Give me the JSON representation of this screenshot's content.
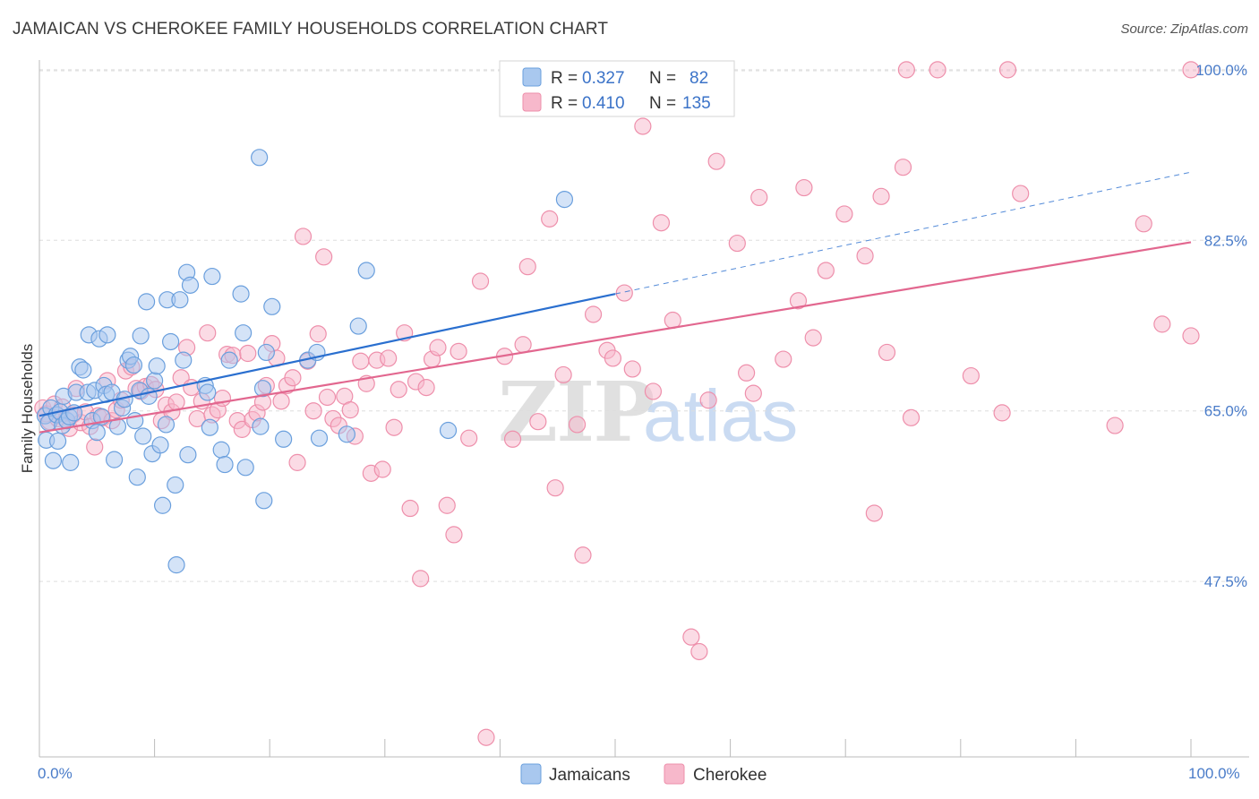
{
  "header": {
    "title": "JAMAICAN VS CHEROKEE FAMILY HOUSEHOLDS CORRELATION CHART",
    "source": "Source: ZipAtlas.com"
  },
  "watermark": {
    "zip": "ZIP",
    "atlas": "atlas"
  },
  "legend": {
    "jamaicans": {
      "r_label": "R =",
      "r_value": "0.327",
      "n_label": "N =",
      "n_value": "82"
    },
    "cherokee": {
      "r_label": "R =",
      "r_value": "0.410",
      "n_label": "N =",
      "n_value": "135"
    }
  },
  "colors": {
    "jamaicans_fill": "#a9c8ef",
    "jamaicans_stroke": "#6a9fdd",
    "jamaicans_line": "#2a6fcf",
    "cherokee_fill": "#f7b8cb",
    "cherokee_stroke": "#ee8fab",
    "cherokee_line": "#e2678f",
    "tick_text": "#4a7cc9",
    "grid": "#dddddd"
  },
  "chart_data": {
    "type": "scatter",
    "title": "JAMAICAN VS CHEROKEE FAMILY HOUSEHOLDS CORRELATION CHART",
    "xlabel": "",
    "ylabel": "Family Households",
    "xlim": [
      0,
      100
    ],
    "ylim": [
      29.5,
      101
    ],
    "y_ticks": [
      47.5,
      65.0,
      82.5,
      100.0
    ],
    "y_tick_labels": [
      "47.5%",
      "65.0%",
      "82.5%",
      "100.0%"
    ],
    "x_tick_labels": [
      "0.0%",
      "100.0%"
    ],
    "grid": true,
    "legend_position": "top-center",
    "series": [
      {
        "name": "Jamaicans",
        "r": 0.327,
        "n": 82,
        "trend": {
          "x0": 0,
          "y0": 64.5,
          "x1": 50,
          "y1": 77.0,
          "dashed_to_x": 100,
          "dashed_to_y": 89.5
        },
        "points": [
          [
            0.5,
            64.5
          ],
          [
            0.6,
            62.0
          ],
          [
            0.8,
            63.8
          ],
          [
            1.0,
            65.3
          ],
          [
            1.2,
            59.9
          ],
          [
            1.5,
            64.6
          ],
          [
            1.6,
            61.9
          ],
          [
            1.8,
            64.9
          ],
          [
            2.0,
            63.5
          ],
          [
            2.1,
            66.5
          ],
          [
            2.4,
            64.0
          ],
          [
            2.6,
            64.4
          ],
          [
            2.7,
            59.7
          ],
          [
            3.0,
            64.8
          ],
          [
            3.2,
            66.9
          ],
          [
            3.5,
            69.5
          ],
          [
            3.8,
            69.2
          ],
          [
            4.2,
            66.9
          ],
          [
            4.3,
            72.8
          ],
          [
            4.6,
            64.0
          ],
          [
            4.8,
            67.1
          ],
          [
            5.0,
            62.8
          ],
          [
            5.2,
            72.4
          ],
          [
            5.4,
            64.4
          ],
          [
            5.6,
            67.6
          ],
          [
            5.8,
            66.7
          ],
          [
            5.9,
            72.8
          ],
          [
            6.3,
            66.9
          ],
          [
            6.5,
            60.0
          ],
          [
            6.8,
            63.4
          ],
          [
            7.2,
            65.3
          ],
          [
            7.4,
            66.2
          ],
          [
            7.7,
            70.2
          ],
          [
            7.9,
            70.6
          ],
          [
            8.2,
            69.7
          ],
          [
            8.3,
            64.0
          ],
          [
            8.5,
            58.2
          ],
          [
            8.7,
            67.1
          ],
          [
            8.8,
            72.7
          ],
          [
            9.0,
            62.4
          ],
          [
            9.3,
            76.2
          ],
          [
            9.5,
            66.5
          ],
          [
            9.8,
            60.6
          ],
          [
            10.0,
            68.1
          ],
          [
            10.2,
            69.6
          ],
          [
            10.5,
            61.5
          ],
          [
            10.7,
            55.3
          ],
          [
            11.0,
            63.6
          ],
          [
            11.1,
            76.4
          ],
          [
            11.4,
            72.1
          ],
          [
            11.8,
            57.4
          ],
          [
            11.9,
            49.2
          ],
          [
            12.2,
            76.4
          ],
          [
            12.5,
            70.2
          ],
          [
            12.8,
            79.2
          ],
          [
            12.9,
            60.5
          ],
          [
            13.1,
            77.9
          ],
          [
            14.4,
            67.6
          ],
          [
            14.6,
            66.9
          ],
          [
            14.8,
            63.3
          ],
          [
            15.0,
            78.8
          ],
          [
            15.8,
            61.0
          ],
          [
            16.1,
            59.5
          ],
          [
            16.5,
            70.2
          ],
          [
            17.5,
            77.0
          ],
          [
            17.7,
            73.0
          ],
          [
            17.9,
            59.2
          ],
          [
            19.1,
            91.0
          ],
          [
            19.2,
            63.4
          ],
          [
            19.4,
            67.3
          ],
          [
            19.5,
            55.8
          ],
          [
            19.7,
            71.0
          ],
          [
            20.2,
            75.7
          ],
          [
            21.2,
            62.1
          ],
          [
            23.3,
            70.2
          ],
          [
            24.1,
            71.0
          ],
          [
            24.3,
            62.2
          ],
          [
            26.7,
            62.6
          ],
          [
            27.7,
            73.7
          ],
          [
            28.4,
            79.4
          ],
          [
            35.5,
            63.0
          ],
          [
            45.6,
            86.7
          ]
        ]
      },
      {
        "name": "Cherokee",
        "r": 0.41,
        "n": 135,
        "trend": {
          "x0": 0,
          "y0": 62.8,
          "x1": 100,
          "y1": 82.3
        },
        "points": [
          [
            0.3,
            65.3
          ],
          [
            0.6,
            64.7
          ],
          [
            0.9,
            63.9
          ],
          [
            1.3,
            65.7
          ],
          [
            1.6,
            64.2
          ],
          [
            2.0,
            65.4
          ],
          [
            2.3,
            64.1
          ],
          [
            2.6,
            63.2
          ],
          [
            2.9,
            64.6
          ],
          [
            3.2,
            67.3
          ],
          [
            3.6,
            63.8
          ],
          [
            4.0,
            64.9
          ],
          [
            4.4,
            63.4
          ],
          [
            4.8,
            61.3
          ],
          [
            5.1,
            64.5
          ],
          [
            5.5,
            64.3
          ],
          [
            5.9,
            68.1
          ],
          [
            6.3,
            64.0
          ],
          [
            6.7,
            65.1
          ],
          [
            7.1,
            66.1
          ],
          [
            7.5,
            69.1
          ],
          [
            8.0,
            69.5
          ],
          [
            8.4,
            67.3
          ],
          [
            8.8,
            67.0
          ],
          [
            9.2,
            67.5
          ],
          [
            9.7,
            67.7
          ],
          [
            10.1,
            67.2
          ],
          [
            10.6,
            64.0
          ],
          [
            11.0,
            65.6
          ],
          [
            11.5,
            64.9
          ],
          [
            11.9,
            65.9
          ],
          [
            12.3,
            68.4
          ],
          [
            12.8,
            71.5
          ],
          [
            13.2,
            67.4
          ],
          [
            13.7,
            64.2
          ],
          [
            14.1,
            66.0
          ],
          [
            14.6,
            73.0
          ],
          [
            15.0,
            64.6
          ],
          [
            15.5,
            65.1
          ],
          [
            15.9,
            66.3
          ],
          [
            16.3,
            70.8
          ],
          [
            16.8,
            70.7
          ],
          [
            17.2,
            64.0
          ],
          [
            17.6,
            63.1
          ],
          [
            18.1,
            70.9
          ],
          [
            18.5,
            64.1
          ],
          [
            18.9,
            64.8
          ],
          [
            19.4,
            65.9
          ],
          [
            19.7,
            67.6
          ],
          [
            20.2,
            71.9
          ],
          [
            20.6,
            70.4
          ],
          [
            21.0,
            66.0
          ],
          [
            21.5,
            67.6
          ],
          [
            22.0,
            68.4
          ],
          [
            22.4,
            59.7
          ],
          [
            22.9,
            82.9
          ],
          [
            23.3,
            70.1
          ],
          [
            23.8,
            65.0
          ],
          [
            24.2,
            72.9
          ],
          [
            24.7,
            80.8
          ],
          [
            25.0,
            66.4
          ],
          [
            25.5,
            64.2
          ],
          [
            26.0,
            63.5
          ],
          [
            26.5,
            66.5
          ],
          [
            27.0,
            65.1
          ],
          [
            27.4,
            62.4
          ],
          [
            27.9,
            70.1
          ],
          [
            28.4,
            67.8
          ],
          [
            28.8,
            58.6
          ],
          [
            29.3,
            70.2
          ],
          [
            29.8,
            59.0
          ],
          [
            30.3,
            70.4
          ],
          [
            30.8,
            63.3
          ],
          [
            31.2,
            67.2
          ],
          [
            31.7,
            73.0
          ],
          [
            32.2,
            55.0
          ],
          [
            32.7,
            68.0
          ],
          [
            33.1,
            47.8
          ],
          [
            33.6,
            67.4
          ],
          [
            34.1,
            70.3
          ],
          [
            34.6,
            71.5
          ],
          [
            35.4,
            55.3
          ],
          [
            36.0,
            52.3
          ],
          [
            36.4,
            71.1
          ],
          [
            37.3,
            62.2
          ],
          [
            38.3,
            78.3
          ],
          [
            38.8,
            31.5
          ],
          [
            40.4,
            70.6
          ],
          [
            41.1,
            62.1
          ],
          [
            42.0,
            71.8
          ],
          [
            42.4,
            79.8
          ],
          [
            43.3,
            63.9
          ],
          [
            44.3,
            84.7
          ],
          [
            44.8,
            57.1
          ],
          [
            45.5,
            68.7
          ],
          [
            46.7,
            63.6
          ],
          [
            47.2,
            50.2
          ],
          [
            48.1,
            74.9
          ],
          [
            49.3,
            71.2
          ],
          [
            49.8,
            70.4
          ],
          [
            50.8,
            77.1
          ],
          [
            51.5,
            69.3
          ],
          [
            52.4,
            94.2
          ],
          [
            53.3,
            67.0
          ],
          [
            54.0,
            84.3
          ],
          [
            55.0,
            74.3
          ],
          [
            56.6,
            41.8
          ],
          [
            57.3,
            40.3
          ],
          [
            58.1,
            66.1
          ],
          [
            58.8,
            90.6
          ],
          [
            60.6,
            82.2
          ],
          [
            61.4,
            68.9
          ],
          [
            62.0,
            66.8
          ],
          [
            62.5,
            86.9
          ],
          [
            64.6,
            70.3
          ],
          [
            65.9,
            76.3
          ],
          [
            66.4,
            87.9
          ],
          [
            67.2,
            72.5
          ],
          [
            68.3,
            79.4
          ],
          [
            69.9,
            85.2
          ],
          [
            71.7,
            80.9
          ],
          [
            72.5,
            54.5
          ],
          [
            73.1,
            87.0
          ],
          [
            73.6,
            71.0
          ],
          [
            75.0,
            90.0
          ],
          [
            75.3,
            100.0
          ],
          [
            75.7,
            64.3
          ],
          [
            78.0,
            100.0
          ],
          [
            80.9,
            68.6
          ],
          [
            83.6,
            64.8
          ],
          [
            84.1,
            100.0
          ],
          [
            85.2,
            87.3
          ],
          [
            93.4,
            63.5
          ],
          [
            95.9,
            84.2
          ],
          [
            97.5,
            73.9
          ],
          [
            100.0,
            100.0
          ],
          [
            100.0,
            72.7
          ]
        ]
      }
    ]
  },
  "bottom_legend": {
    "jamaicans": "Jamaicans",
    "cherokee": "Cherokee"
  }
}
